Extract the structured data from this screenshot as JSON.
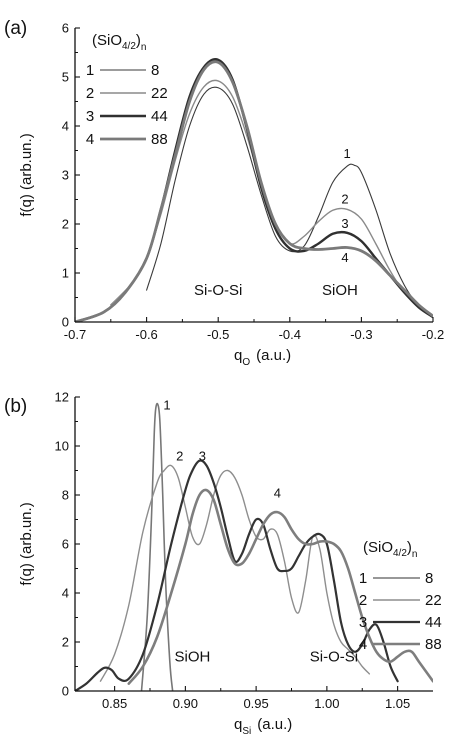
{
  "chart_data": [
    {
      "type": "line",
      "panel_label": "(a)",
      "xlabel_main": "q",
      "xlabel_sub": "O",
      "xlabel_unit": "(a.u.)",
      "ylabel": "f(q)  (arb.un.)",
      "xlim": [
        -0.7,
        -0.2
      ],
      "ylim": [
        0,
        6
      ],
      "xticks": [
        -0.7,
        -0.6,
        -0.5,
        -0.4,
        -0.3,
        -0.2
      ],
      "yticks": [
        0,
        1,
        2,
        3,
        4,
        5,
        6
      ],
      "xtick_labels": [
        "-0.7",
        "-0.6",
        "-0.5",
        "-0.4",
        "-0.3",
        "-0.2"
      ],
      "ytick_labels": [
        "0",
        "1",
        "2",
        "3",
        "4",
        "5",
        "6"
      ],
      "legend": {
        "title_main": "(SiO",
        "title_sub": "4/2",
        "title_close": ")",
        "title_n": "n",
        "placement": "top-left",
        "entries": [
          {
            "number": "1",
            "value": "8"
          },
          {
            "number": "2",
            "value": "22"
          },
          {
            "number": "3",
            "value": "44"
          },
          {
            "number": "4",
            "value": "88"
          }
        ]
      },
      "annotations": [
        {
          "text": "Si-O-Si",
          "x": -0.5,
          "y": 0.55
        },
        {
          "text": "SiOH",
          "x": -0.33,
          "y": 0.55
        }
      ],
      "curve_labels": [
        {
          "text": "1",
          "x": -0.32,
          "y": 3.35
        },
        {
          "text": "2",
          "x": -0.323,
          "y": 2.42
        },
        {
          "text": "3",
          "x": -0.323,
          "y": 1.92
        },
        {
          "text": "4",
          "x": -0.323,
          "y": 1.22
        }
      ],
      "series": [
        {
          "name": "1",
          "color": "#3a3a3a",
          "width": 1.1,
          "x": [
            -0.6,
            -0.58,
            -0.56,
            -0.54,
            -0.52,
            -0.5,
            -0.48,
            -0.46,
            -0.44,
            -0.42,
            -0.4,
            -0.38,
            -0.36,
            -0.34,
            -0.32,
            -0.31,
            -0.3,
            -0.28,
            -0.26,
            -0.24,
            -0.22
          ],
          "y": [
            0.65,
            1.6,
            2.9,
            4.0,
            4.65,
            4.78,
            4.45,
            3.6,
            2.6,
            1.75,
            1.45,
            1.55,
            2.15,
            2.85,
            3.18,
            3.2,
            3.05,
            2.3,
            1.4,
            0.75,
            0.3
          ]
        },
        {
          "name": "2",
          "color": "#8a8a8a",
          "width": 1.4,
          "x": [
            -0.65,
            -0.62,
            -0.6,
            -0.58,
            -0.56,
            -0.54,
            -0.52,
            -0.5,
            -0.48,
            -0.46,
            -0.44,
            -0.42,
            -0.4,
            -0.38,
            -0.36,
            -0.34,
            -0.32,
            -0.3,
            -0.28,
            -0.26,
            -0.24,
            -0.22
          ],
          "y": [
            0.35,
            0.8,
            1.3,
            2.2,
            3.3,
            4.25,
            4.8,
            4.92,
            4.6,
            3.8,
            2.8,
            2.0,
            1.6,
            1.75,
            2.05,
            2.28,
            2.3,
            2.1,
            1.6,
            1.05,
            0.6,
            0.3
          ]
        },
        {
          "name": "3",
          "color": "#303030",
          "width": 2.4,
          "x": [
            -0.7,
            -0.66,
            -0.63,
            -0.6,
            -0.58,
            -0.56,
            -0.54,
            -0.52,
            -0.5,
            -0.48,
            -0.46,
            -0.44,
            -0.42,
            -0.4,
            -0.38,
            -0.36,
            -0.34,
            -0.32,
            -0.3,
            -0.28,
            -0.26,
            -0.24,
            -0.22,
            -0.2
          ],
          "y": [
            0.0,
            0.2,
            0.6,
            1.3,
            2.3,
            3.5,
            4.6,
            5.2,
            5.35,
            4.95,
            3.95,
            2.75,
            1.9,
            1.5,
            1.45,
            1.6,
            1.8,
            1.82,
            1.65,
            1.3,
            0.95,
            0.6,
            0.3,
            0.1
          ]
        },
        {
          "name": "4",
          "color": "#7a7a7a",
          "width": 2.8,
          "x": [
            -0.7,
            -0.66,
            -0.63,
            -0.6,
            -0.58,
            -0.56,
            -0.54,
            -0.52,
            -0.5,
            -0.48,
            -0.46,
            -0.44,
            -0.42,
            -0.4,
            -0.38,
            -0.36,
            -0.34,
            -0.32,
            -0.3,
            -0.28,
            -0.26,
            -0.24,
            -0.22,
            -0.2
          ],
          "y": [
            0.0,
            0.2,
            0.6,
            1.3,
            2.3,
            3.4,
            4.5,
            5.15,
            5.3,
            4.9,
            4.0,
            2.85,
            2.0,
            1.6,
            1.5,
            1.48,
            1.5,
            1.52,
            1.45,
            1.25,
            0.95,
            0.65,
            0.35,
            0.12
          ]
        }
      ]
    },
    {
      "type": "line",
      "panel_label": "(b)",
      "xlabel_main": "q",
      "xlabel_sub": "Si",
      "xlabel_unit": "(a.u.)",
      "ylabel": "f(q)  (arb.un.)",
      "xlim": [
        0.822,
        1.075
      ],
      "ylim": [
        0,
        12
      ],
      "xticks": [
        0.85,
        0.9,
        0.95,
        1.0,
        1.05
      ],
      "yticks": [
        0,
        2,
        4,
        6,
        8,
        10,
        12
      ],
      "xtick_labels": [
        "0.85",
        "0.90",
        "0.95",
        "1.00",
        "1.05"
      ],
      "ytick_labels": [
        "0",
        "2",
        "4",
        "6",
        "8",
        "10",
        "12"
      ],
      "legend": {
        "title_main": "(SiO",
        "title_sub": "4/2",
        "title_close": ")",
        "title_n": "n",
        "placement": "right",
        "entries": [
          {
            "number": "1",
            "value": "8"
          },
          {
            "number": "2",
            "value": "22"
          },
          {
            "number": "3",
            "value": "44"
          },
          {
            "number": "4",
            "value": "88"
          }
        ]
      },
      "annotations": [
        {
          "text": "SiOH",
          "x": 0.905,
          "y": 1.2
        },
        {
          "text": "Si-O-Si",
          "x": 1.005,
          "y": 1.2
        }
      ],
      "curve_labels": [
        {
          "text": "1",
          "x": 0.887,
          "y": 11.5
        },
        {
          "text": "2",
          "x": 0.896,
          "y": 9.4
        },
        {
          "text": "3",
          "x": 0.912,
          "y": 9.4
        },
        {
          "text": "4",
          "x": 0.965,
          "y": 7.9
        }
      ],
      "series": [
        {
          "name": "1",
          "color": "#777777",
          "width": 1.6,
          "x": [
            0.869,
            0.873,
            0.876,
            0.878,
            0.879,
            0.8805,
            0.882,
            0.884,
            0.886,
            0.889,
            0.891
          ],
          "y": [
            0.0,
            3.0,
            7.0,
            10.5,
            11.5,
            11.7,
            11.0,
            8.0,
            4.5,
            1.2,
            0.0
          ]
        },
        {
          "name": "2",
          "color": "#8e8e8e",
          "width": 1.4,
          "x": [
            0.84,
            0.85,
            0.86,
            0.87,
            0.88,
            0.885,
            0.89,
            0.895,
            0.9,
            0.905,
            0.91,
            0.915,
            0.92,
            0.925,
            0.93,
            0.935,
            0.94,
            0.945,
            0.95,
            0.955,
            0.96,
            0.965,
            0.97,
            0.975,
            0.98,
            0.985,
            0.99,
            0.995,
            1.0,
            1.005,
            1.01,
            1.015,
            1.02,
            1.025,
            1.03
          ],
          "y": [
            0.4,
            1.5,
            3.5,
            6.5,
            8.5,
            9.0,
            9.2,
            8.7,
            7.5,
            6.3,
            6.0,
            6.8,
            8.0,
            8.8,
            9.0,
            8.7,
            8.0,
            7.0,
            6.3,
            6.2,
            6.6,
            6.4,
            5.3,
            3.8,
            3.2,
            4.5,
            6.3,
            5.8,
            4.0,
            2.7,
            2.0,
            1.7,
            1.4,
            1.0,
            0.7
          ]
        },
        {
          "name": "3",
          "color": "#333333",
          "width": 2.2,
          "x": [
            0.822,
            0.83,
            0.838,
            0.843,
            0.848,
            0.853,
            0.86,
            0.87,
            0.88,
            0.89,
            0.9,
            0.905,
            0.91,
            0.915,
            0.92,
            0.925,
            0.93,
            0.935,
            0.94,
            0.945,
            0.95,
            0.955,
            0.96,
            0.965,
            0.97,
            0.975,
            0.98,
            0.985,
            0.99,
            0.995,
            1.0,
            1.005,
            1.01,
            1.015,
            1.02,
            1.025,
            1.03,
            1.035,
            1.04,
            1.045,
            1.05
          ],
          "y": [
            0.0,
            0.3,
            0.75,
            0.95,
            0.85,
            0.5,
            0.5,
            1.5,
            3.5,
            6.0,
            8.2,
            9.0,
            9.4,
            9.2,
            8.5,
            7.5,
            6.3,
            5.3,
            5.6,
            6.4,
            7.0,
            6.8,
            5.8,
            5.0,
            4.9,
            5.0,
            5.5,
            6.0,
            6.3,
            6.4,
            6.0,
            4.5,
            2.8,
            1.9,
            1.6,
            1.9,
            2.5,
            2.7,
            2.0,
            1.0,
            0.4
          ]
        },
        {
          "name": "4",
          "color": "#7e7e7e",
          "width": 2.6,
          "x": [
            0.86,
            0.87,
            0.88,
            0.89,
            0.9,
            0.905,
            0.91,
            0.915,
            0.92,
            0.925,
            0.93,
            0.935,
            0.94,
            0.945,
            0.95,
            0.955,
            0.96,
            0.965,
            0.97,
            0.975,
            0.98,
            0.985,
            0.99,
            0.995,
            1.0,
            1.005,
            1.01,
            1.015,
            1.02,
            1.025,
            1.03,
            1.035,
            1.04,
            1.045,
            1.05,
            1.055,
            1.06,
            1.065,
            1.075
          ],
          "y": [
            0.3,
            1.0,
            2.2,
            4.0,
            6.0,
            7.2,
            8.0,
            8.2,
            7.8,
            6.8,
            5.8,
            5.2,
            5.2,
            5.6,
            6.2,
            6.8,
            7.2,
            7.3,
            7.1,
            6.6,
            6.2,
            6.0,
            6.0,
            6.1,
            6.1,
            6.0,
            5.7,
            5.0,
            4.0,
            3.0,
            2.2,
            1.6,
            1.3,
            1.2,
            1.4,
            1.6,
            1.6,
            1.2,
            0.4
          ]
        }
      ]
    }
  ]
}
